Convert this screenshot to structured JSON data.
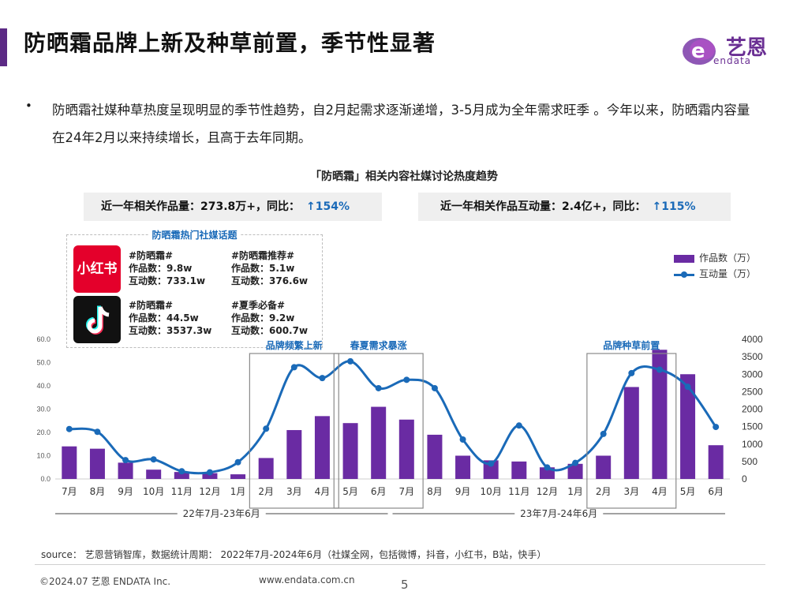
{
  "page": {
    "title": "防晒霜品牌上新及种草前置，季节性显著",
    "logo_text": "艺恩",
    "logo_sub": "endata",
    "bullet_text": "防晒霜社媒种草热度呈现明显的季节性趋势，自2月起需求逐渐递增，3-5月成为全年需求旺季 。今年以来，防晒霜内容量在24年2月以来持续增长，且高于去年同期。",
    "source": "source： 艺恩营销智库，数据统计周期： 2022年7月-2024年6月（社媒全网，包括微博，抖音，小红书，B站，快手）",
    "footer_left": "©2024.07 艺恩 ENDATA Inc.",
    "footer_center": "www.endata.com.cn",
    "page_number": "5"
  },
  "stats": {
    "works_label": "近一年相关作品量：273.8万+，同比：",
    "works_yoy": "↑154%",
    "interaction_label": "近一年相关作品互动量：2.4亿+，同比：",
    "interaction_yoy": "↑115%"
  },
  "topics": {
    "title": "防晒霜热门社媒话题",
    "xhs_name": "小红书",
    "items": [
      {
        "tag": "#防晒霜#",
        "works": "作品数：9.8w",
        "inter": "互动数：733.1w"
      },
      {
        "tag": "#防晒霜推荐#",
        "works": "作品数：5.1w",
        "inter": "互动数：376.6w"
      },
      {
        "tag": "#防晒霜#",
        "works": "作品数：44.5w",
        "inter": "互动数：3537.3w"
      },
      {
        "tag": "#夏季必备#",
        "works": "作品数：9.2w",
        "inter": "互动数：600.7w"
      }
    ]
  },
  "colors": {
    "bar": "#6a2ba3",
    "line": "#1a6ab8",
    "accent": "#5c2a85"
  },
  "chart_data": {
    "type": "bar",
    "title": "「防晒霜」相关内容社媒讨论热度趋势",
    "categories": [
      "7月",
      "8月",
      "9月",
      "10月",
      "11月",
      "12月",
      "1月",
      "2月",
      "3月",
      "4月",
      "5月",
      "6月",
      "7月",
      "8月",
      "9月",
      "10月",
      "11月",
      "12月",
      "1月",
      "2月",
      "3月",
      "4月",
      "5月",
      "6月"
    ],
    "series": [
      {
        "name": "作品数（万）",
        "type": "bar",
        "axis": "left",
        "values": [
          14,
          13,
          7,
          4,
          3,
          2.5,
          2,
          9,
          21,
          27,
          24,
          31,
          25.5,
          19,
          10,
          8,
          7.5,
          5,
          6.5,
          10,
          39.5,
          55.5,
          45,
          14.5
        ]
      },
      {
        "name": "互动量（万）",
        "type": "line",
        "axis": "right",
        "values": [
          1430,
          1350,
          540,
          560,
          220,
          190,
          480,
          1440,
          3200,
          2890,
          3370,
          2600,
          2840,
          2600,
          1130,
          440,
          1530,
          330,
          460,
          1290,
          3030,
          3130,
          2640,
          1490
        ]
      }
    ],
    "y_left": {
      "min": 0,
      "max": 60,
      "ticks": [
        "0.0",
        "10.0",
        "20.0",
        "30.0",
        "40.0",
        "50.0",
        "60.0"
      ]
    },
    "y_right": {
      "min": 0,
      "max": 4000,
      "ticks": [
        "0",
        "500",
        "1000",
        "1500",
        "2000",
        "2500",
        "3000",
        "3500",
        "4000"
      ]
    },
    "annotations": [
      {
        "label": "品牌频繁上新",
        "from": 7,
        "to": 10
      },
      {
        "label": "春夏需求暴涨",
        "from": 10,
        "to": 13
      },
      {
        "label": "品牌种草前置",
        "from": 19,
        "to": 22
      }
    ],
    "periods": [
      {
        "label": "22年7月-23年6月",
        "from": 0,
        "to": 11
      },
      {
        "label": "23年7月-24年6月",
        "from": 12,
        "to": 23
      }
    ],
    "legend": "right",
    "grid": false
  }
}
